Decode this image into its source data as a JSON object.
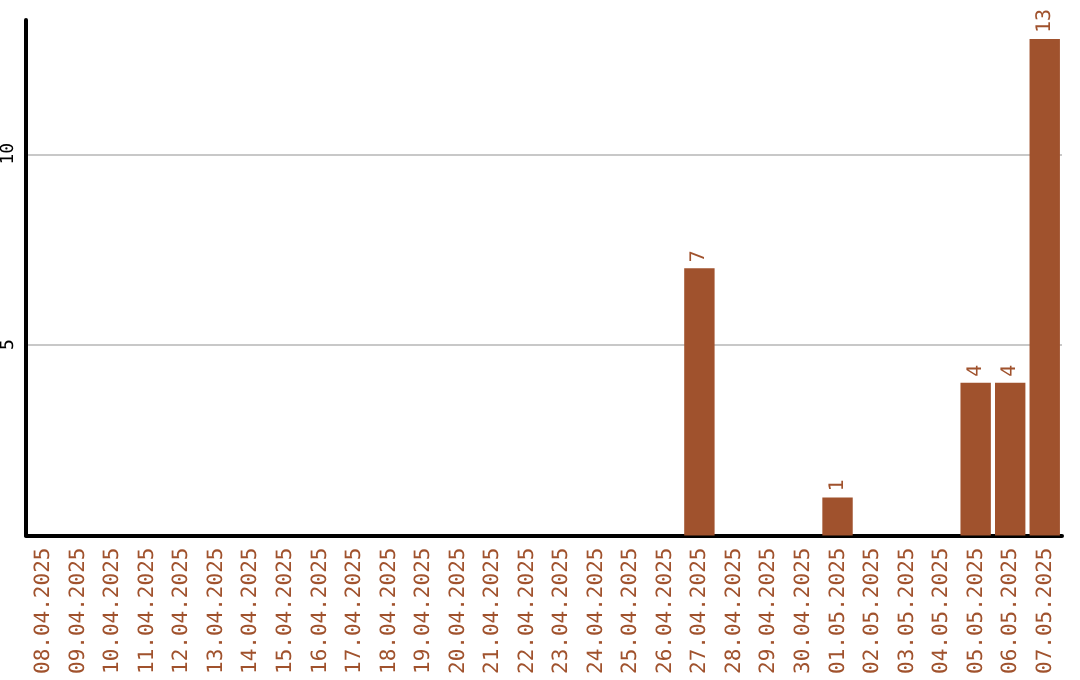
{
  "chart_data": {
    "type": "bar",
    "categories": [
      "08.04.2025",
      "09.04.2025",
      "10.04.2025",
      "11.04.2025",
      "12.04.2025",
      "13.04.2025",
      "14.04.2025",
      "15.04.2025",
      "16.04.2025",
      "17.04.2025",
      "18.04.2025",
      "19.04.2025",
      "20.04.2025",
      "21.04.2025",
      "22.04.2025",
      "23.04.2025",
      "24.04.2025",
      "25.04.2025",
      "26.04.2025",
      "27.04.2025",
      "28.04.2025",
      "29.04.2025",
      "30.04.2025",
      "01.05.2025",
      "02.05.2025",
      "03.05.2025",
      "04.05.2025",
      "05.05.2025",
      "06.05.2025",
      "07.05.2025"
    ],
    "values": [
      0,
      0,
      0,
      0,
      0,
      0,
      0,
      0,
      0,
      0,
      0,
      0,
      0,
      0,
      0,
      0,
      0,
      0,
      0,
      7,
      0,
      0,
      0,
      1,
      0,
      0,
      0,
      4,
      4,
      13
    ],
    "value_labels": [
      null,
      null,
      null,
      null,
      null,
      null,
      null,
      null,
      null,
      null,
      null,
      null,
      null,
      null,
      null,
      null,
      null,
      null,
      null,
      "7",
      null,
      null,
      null,
      "1",
      null,
      null,
      null,
      "4",
      "4",
      "13"
    ],
    "color": "#a0522d",
    "ylim": [
      0,
      13.5
    ],
    "yticks": [
      5,
      10
    ],
    "grid": "y"
  }
}
